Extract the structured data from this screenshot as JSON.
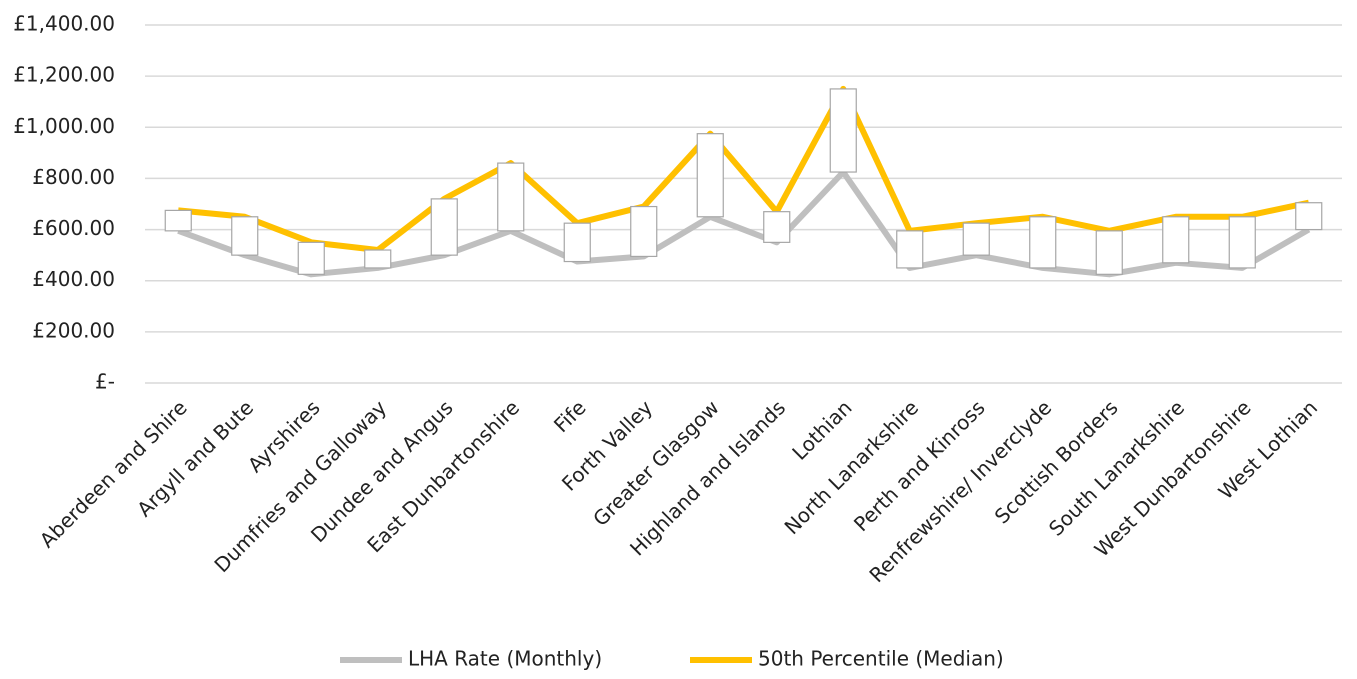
{
  "chart_data": {
    "type": "line",
    "categories": [
      "Aberdeen and Shire",
      "Argyll and Bute",
      "Ayrshires",
      "Dumfries and Galloway",
      "Dundee and Angus",
      "East Dunbartonshire",
      "Fife",
      "Forth Valley",
      "Greater Glasgow",
      "Highland and Islands",
      "Lothian",
      "North Lanarkshire",
      "Perth and Kinross",
      "Renfrewshire/ Inverclyde",
      "Scottish Borders",
      "South Lanarkshire",
      "West Dunbartonshire",
      "West Lothian"
    ],
    "series": [
      {
        "name": "LHA Rate  (Monthly)",
        "color": "#bfbfbf",
        "values": [
          595,
          500,
          425,
          450,
          500,
          595,
          475,
          495,
          650,
          550,
          825,
          450,
          500,
          450,
          425,
          470,
          450,
          600
        ]
      },
      {
        "name": "50th Percentile (Median)",
        "color": "#ffc000",
        "values": [
          675,
          650,
          550,
          520,
          720,
          860,
          625,
          690,
          975,
          670,
          1150,
          595,
          625,
          650,
          595,
          650,
          650,
          705
        ]
      }
    ],
    "up_down_bars": true,
    "ylim": [
      0,
      1400
    ],
    "yticks": [
      {
        "value": 0,
        "label": "£-"
      },
      {
        "value": 200,
        "label": "£200.00"
      },
      {
        "value": 400,
        "label": "£400.00"
      },
      {
        "value": 600,
        "label": "£600.00"
      },
      {
        "value": 800,
        "label": "£800.00"
      },
      {
        "value": 1000,
        "label": "£1,000.00"
      },
      {
        "value": 1200,
        "label": "£1,200.00"
      },
      {
        "value": 1400,
        "label": "£1,400.00"
      }
    ],
    "grid": true,
    "legend": "bottom"
  }
}
